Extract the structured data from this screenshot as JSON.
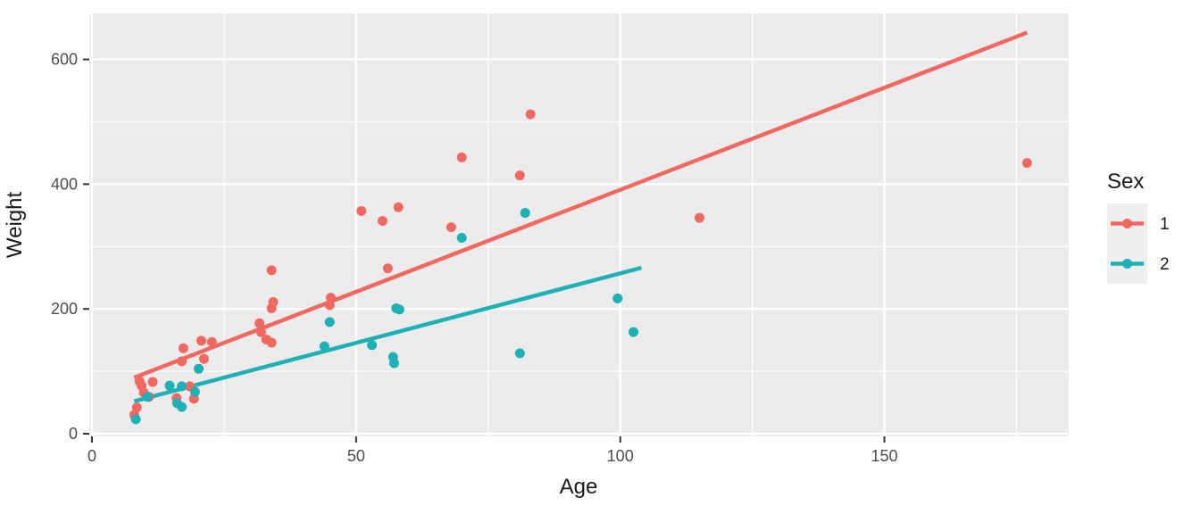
{
  "chart_data": {
    "type": "scatter",
    "title": "",
    "xlabel": "Age",
    "ylabel": "Weight",
    "xlim": [
      -0.5,
      185.5
    ],
    "ylim": [
      -4,
      673
    ],
    "x_major_ticks": [
      0,
      50,
      100,
      150
    ],
    "x_minor_ticks": [
      25,
      75,
      125,
      175
    ],
    "y_major_ticks": [
      0,
      200,
      400,
      600
    ],
    "y_minor_ticks": [
      100,
      300,
      500
    ],
    "grid": "on",
    "panel_bg": "#EBEBEB",
    "grid_color": "#FFFFFF",
    "tick_color": "#333333",
    "legend": {
      "title": "Sex",
      "position": "right",
      "key_bg": "#EFEFEF",
      "entries": [
        {
          "label": "1",
          "color": "#F0685F"
        },
        {
          "label": "2",
          "color": "#1FB0B6"
        }
      ]
    },
    "series": [
      {
        "name": "1",
        "color": "#F0685F",
        "points": [
          [
            8,
            30
          ],
          [
            8.5,
            42
          ],
          [
            9,
            84
          ],
          [
            9.4,
            77
          ],
          [
            9.8,
            66
          ],
          [
            10.8,
            59
          ],
          [
            11.5,
            83
          ],
          [
            16,
            57
          ],
          [
            17,
            116
          ],
          [
            17.3,
            137
          ],
          [
            18.5,
            76
          ],
          [
            19.3,
            56
          ],
          [
            20.7,
            149
          ],
          [
            21.2,
            120
          ],
          [
            22.7,
            147
          ],
          [
            31.7,
            177
          ],
          [
            32,
            163
          ],
          [
            33,
            151
          ],
          [
            34,
            146
          ],
          [
            34,
            201
          ],
          [
            34.3,
            211
          ],
          [
            34,
            262
          ],
          [
            45,
            206
          ],
          [
            45.2,
            218
          ],
          [
            51,
            357
          ],
          [
            55,
            341
          ],
          [
            56,
            265
          ],
          [
            58,
            363
          ],
          [
            68,
            331
          ],
          [
            70,
            443
          ],
          [
            81,
            414
          ],
          [
            83,
            512
          ],
          [
            115,
            346
          ],
          [
            177,
            434
          ]
        ],
        "trend_line": {
          "x1": 8,
          "y1": 90,
          "x2": 177,
          "y2": 643
        }
      },
      {
        "name": "2",
        "color": "#1FB0B6",
        "points": [
          [
            8.3,
            23
          ],
          [
            10.5,
            59
          ],
          [
            14.7,
            77
          ],
          [
            16.1,
            49
          ],
          [
            17,
            43
          ],
          [
            17,
            76
          ],
          [
            19.5,
            67
          ],
          [
            20.2,
            104
          ],
          [
            44,
            140
          ],
          [
            45,
            179
          ],
          [
            53,
            142
          ],
          [
            57,
            123
          ],
          [
            57.2,
            113
          ],
          [
            57.6,
            201
          ],
          [
            58.2,
            199
          ],
          [
            70,
            314
          ],
          [
            81,
            129
          ],
          [
            82,
            354
          ],
          [
            99.5,
            217
          ],
          [
            102.5,
            163
          ]
        ],
        "trend_line": {
          "x1": 8,
          "y1": 52,
          "x2": 104,
          "y2": 266
        }
      }
    ]
  }
}
